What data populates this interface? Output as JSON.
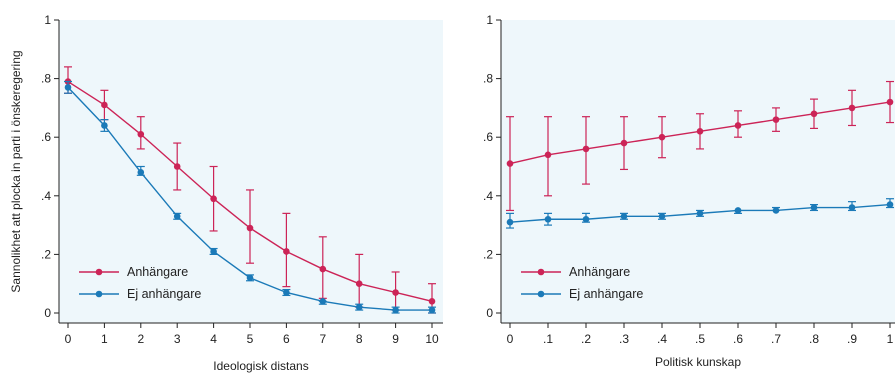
{
  "chart_data": [
    {
      "type": "line",
      "ylabel": "Sannolikhet att plocka in parti i önskeregering",
      "xlabel": "Ideologisk distans",
      "x": [
        0,
        1,
        2,
        3,
        4,
        5,
        6,
        7,
        8,
        9,
        10
      ],
      "x_tick_labels": [
        "0",
        "1",
        "2",
        "3",
        "4",
        "5",
        "6",
        "7",
        "8",
        "9",
        "10"
      ],
      "xlim": [
        0,
        10
      ],
      "ylim": [
        0,
        1
      ],
      "y_ticks": [
        0,
        0.2,
        0.4,
        0.6,
        0.8,
        1
      ],
      "y_tick_labels": [
        "0",
        ".2",
        ".4",
        ".6",
        ".8",
        "1"
      ],
      "grid": false,
      "legend_position": "bottom-left",
      "series": [
        {
          "name": "Anhängare",
          "color": "#cc2457",
          "values": [
            0.79,
            0.71,
            0.61,
            0.5,
            0.39,
            0.29,
            0.21,
            0.15,
            0.1,
            0.07,
            0.04
          ],
          "ci_low": [
            0.75,
            0.66,
            0.56,
            0.42,
            0.28,
            0.17,
            0.09,
            0.05,
            0.02,
            0.01,
            0.0
          ],
          "ci_high": [
            0.84,
            0.76,
            0.67,
            0.58,
            0.5,
            0.42,
            0.34,
            0.26,
            0.2,
            0.14,
            0.1
          ]
        },
        {
          "name": "Ej anhängare",
          "color": "#1b7ab8",
          "values": [
            0.77,
            0.64,
            0.48,
            0.33,
            0.21,
            0.12,
            0.07,
            0.04,
            0.02,
            0.01,
            0.01
          ],
          "ci_low": [
            0.75,
            0.62,
            0.47,
            0.32,
            0.2,
            0.11,
            0.06,
            0.03,
            0.01,
            0.0,
            0.0
          ],
          "ci_high": [
            0.79,
            0.66,
            0.5,
            0.34,
            0.22,
            0.13,
            0.08,
            0.04,
            0.03,
            0.02,
            0.02
          ]
        }
      ]
    },
    {
      "type": "line",
      "ylabel": "",
      "xlabel": "Politisk kunskap",
      "x": [
        0,
        0.1,
        0.2,
        0.3,
        0.4,
        0.5,
        0.6,
        0.7,
        0.8,
        0.9,
        1
      ],
      "x_tick_labels": [
        "0",
        ".1",
        ".2",
        ".3",
        ".4",
        ".5",
        ".6",
        ".7",
        ".8",
        ".9",
        "1"
      ],
      "xlim": [
        0,
        1
      ],
      "ylim": [
        0,
        1
      ],
      "y_ticks": [
        0,
        0.2,
        0.4,
        0.6,
        0.8,
        1
      ],
      "y_tick_labels": [
        "0",
        ".2",
        ".4",
        ".6",
        ".8",
        "1"
      ],
      "grid": false,
      "legend_position": "bottom-left",
      "series": [
        {
          "name": "Anhängare",
          "color": "#cc2457",
          "values": [
            0.51,
            0.54,
            0.56,
            0.58,
            0.6,
            0.62,
            0.64,
            0.66,
            0.68,
            0.7,
            0.72
          ],
          "ci_low": [
            0.35,
            0.4,
            0.44,
            0.49,
            0.53,
            0.56,
            0.6,
            0.62,
            0.63,
            0.64,
            0.65
          ],
          "ci_high": [
            0.67,
            0.67,
            0.67,
            0.67,
            0.67,
            0.68,
            0.69,
            0.7,
            0.73,
            0.76,
            0.79
          ]
        },
        {
          "name": "Ej anhängare",
          "color": "#1b7ab8",
          "values": [
            0.31,
            0.32,
            0.32,
            0.33,
            0.33,
            0.34,
            0.35,
            0.35,
            0.36,
            0.36,
            0.37
          ],
          "ci_low": [
            0.29,
            0.3,
            0.31,
            0.32,
            0.32,
            0.33,
            0.34,
            0.35,
            0.35,
            0.35,
            0.36
          ],
          "ci_high": [
            0.34,
            0.34,
            0.34,
            0.34,
            0.34,
            0.35,
            0.35,
            0.36,
            0.37,
            0.38,
            0.39
          ]
        }
      ]
    }
  ],
  "style": {
    "plot_background": "#eef7fb",
    "axis_color": "#222222"
  }
}
